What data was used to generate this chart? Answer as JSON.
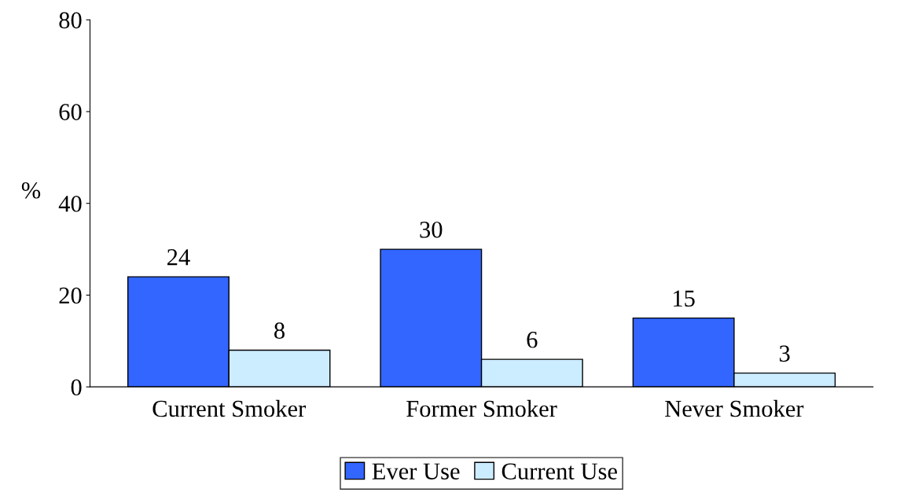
{
  "chart_data": {
    "type": "bar",
    "ylabel": "%",
    "categories": [
      "Current Smoker",
      "Former Smoker",
      "Never Smoker"
    ],
    "series": [
      {
        "name": "Ever Use",
        "color": "#3366ff",
        "values": [
          24,
          30,
          15
        ]
      },
      {
        "name": "Current Use",
        "color": "#ccecff",
        "values": [
          8,
          6,
          3
        ]
      }
    ],
    "ylim": [
      0,
      80
    ],
    "yticks": [
      0,
      20,
      40,
      60,
      80
    ],
    "data_labels": true,
    "grid": false,
    "legend": "bottom"
  }
}
